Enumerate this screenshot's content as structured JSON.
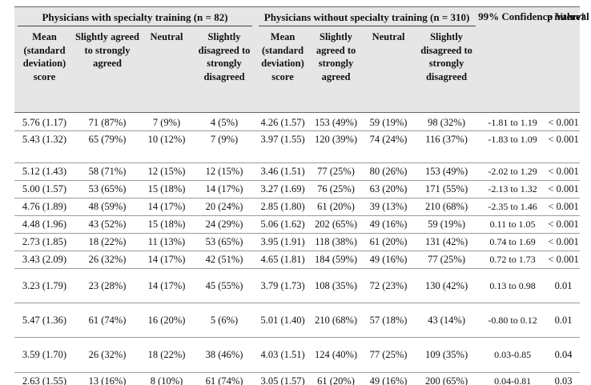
{
  "table": {
    "group_with": "Physicians with specialty training (n = 82)",
    "group_without": "Physicians without specialty training (n = 310)",
    "ci_header": "99% Confidence interval",
    "p_header": "p Value†",
    "sub_headers": [
      "Mean (standard deviation) score",
      "Slightly agreed to strongly agreed",
      "Neutral",
      "Slightly disagreed to strongly disagreed",
      "Mean (standard deviation) score",
      "Slightly agreed to strongly agreed",
      "Neutral",
      "Slightly disagreed to strongly disagreed"
    ],
    "rows": [
      [
        "5.76 (1.17)",
        "71 (87%)",
        "7 (9%)",
        "4 (5%)",
        "4.26 (1.57)",
        "153 (49%)",
        "59 (19%)",
        "98 (32%)",
        "-1.81 to 1.19",
        "< 0.001"
      ],
      [
        "5.43 (1.32)",
        "65 (79%)",
        "10 (12%)",
        "7 (9%)",
        "3.97 (1.55)",
        "120 (39%)",
        "74 (24%)",
        "116 (37%)",
        "-1.83 to 1.09",
        "< 0.001"
      ],
      [
        "5.12 (1.43)",
        "58 (71%)",
        "12 (15%)",
        "12 (15%)",
        "3.46 (1.51)",
        "77 (25%)",
        "80 (26%)",
        "153 (49%)",
        "-2.02 to 1.29",
        "< 0.001"
      ],
      [
        "5.00 (1.57)",
        "53 (65%)",
        "15 (18%)",
        "14 (17%)",
        "3.27 (1.69)",
        "76 (25%)",
        "63 (20%)",
        "171 (55%)",
        "-2.13 to 1.32",
        "< 0.001"
      ],
      [
        "4.76 (1.89)",
        "48 (59%)",
        "14 (17%)",
        "20 (24%)",
        "2.85 (1.80)",
        "61 (20%)",
        "39 (13%)",
        "210 (68%)",
        "-2.35 to 1.46",
        "< 0.001"
      ],
      [
        "4.48 (1.96)",
        "43 (52%)",
        "15 (18%)",
        "24 (29%)",
        "5.06 (1.62)",
        "202 (65%)",
        "49 (16%)",
        "59 (19%)",
        "0.11 to 1.05",
        "< 0.001"
      ],
      [
        "2.73 (1.85)",
        "18 (22%)",
        "11 (13%)",
        "53 (65%)",
        "3.95 (1.91)",
        "118 (38%)",
        "61 (20%)",
        "131 (42%)",
        "0.74 to 1.69",
        "< 0.001"
      ],
      [
        "3.43 (2.09)",
        "26 (32%)",
        "14 (17%)",
        "42 (51%)",
        "4.65 (1.81)",
        "184 (59%)",
        "49 (16%)",
        "77 (25%)",
        "0.72 to 1.73",
        "< 0.001"
      ],
      [
        "3.23 (1.79)",
        "23 (28%)",
        "14 (17%)",
        "45 (55%)",
        "3.79 (1.73)",
        "108 (35%)",
        "72 (23%)",
        "130 (42%)",
        "0.13 to 0.98",
        "0.01"
      ],
      [
        "5.47 (1.36)",
        "61 (74%)",
        "16 (20%)",
        "5 (6%)",
        "5.01 (1.40)",
        "210 (68%)",
        "57 (18%)",
        "43 (14%)",
        "-0.80 to 0.12",
        "0.01"
      ],
      [
        "3.59 (1.70)",
        "26 (32%)",
        "18 (22%)",
        "38 (46%)",
        "4.03 (1.51)",
        "124 (40%)",
        "77 (25%)",
        "109 (35%)",
        "0.03-0.85",
        "0.04"
      ],
      [
        "2.63 (1.55)",
        "13 (16%)",
        "8 (10%)",
        "61 (74%)",
        "3.05 (1.57)",
        "61 (20%)",
        "49 (16%)",
        "200 (65%)",
        "0.04-0.81",
        "0.03"
      ]
    ]
  }
}
